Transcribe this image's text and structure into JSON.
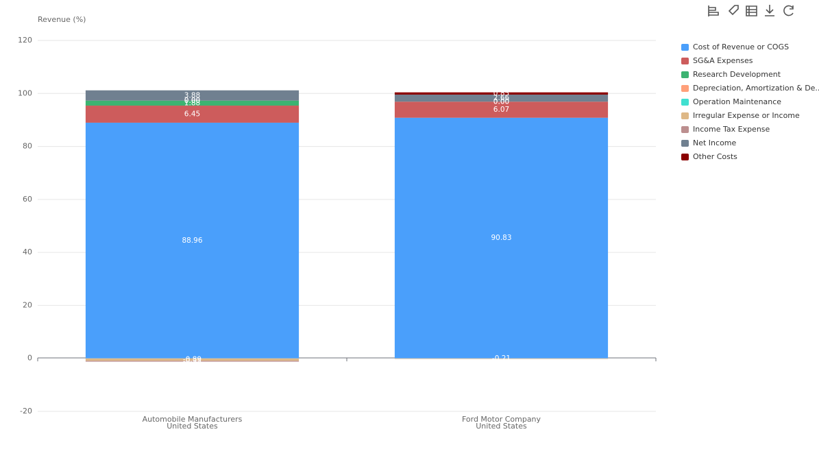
{
  "chart_data": {
    "type": "stacked-bar",
    "y_label": "Revenue (%)",
    "categories": [
      [
        "Automobile Manufacturers",
        "United States"
      ],
      [
        "Ford Motor Company",
        "United States"
      ]
    ],
    "ylim": [
      -20,
      120
    ],
    "yticks": [
      -20,
      0,
      20,
      40,
      60,
      80,
      100,
      120
    ],
    "grid": true,
    "legend": "right",
    "series": [
      {
        "name": "Cost of Revenue or COGS",
        "color": "#4a9ffb",
        "values": [
          88.96,
          90.83
        ]
      },
      {
        "name": "SG&A Expenses",
        "color": "#cd5c5c",
        "values": [
          6.45,
          6.07
        ]
      },
      {
        "name": "Research Development",
        "color": "#3cb371",
        "values": [
          1.88,
          0
        ],
        "value_labels": [
          "1.88",
          "0.00"
        ]
      },
      {
        "name": "Depreciation, Amortization & De...",
        "color": "#ffa07a",
        "values": [
          0,
          0
        ],
        "value_labels": [
          "0.00",
          "0.00"
        ]
      },
      {
        "name": "Operation Maintenance",
        "color": "#40e0d0",
        "values": [
          0,
          null
        ],
        "value_labels": [
          "0.00",
          null
        ]
      },
      {
        "name": "Irregular Expense or Income",
        "color": "#deb887",
        "values": [
          -0.89,
          -0.21
        ]
      },
      {
        "name": "Income Tax Expense",
        "color": "#bc8f8f",
        "values": [
          -0.35,
          null
        ]
      },
      {
        "name": "Net Income",
        "color": "#708090",
        "values": [
          3.88,
          2.66
        ]
      },
      {
        "name": "Other Costs",
        "color": "#8b0000",
        "values": [
          null,
          0.85
        ]
      }
    ]
  }
}
